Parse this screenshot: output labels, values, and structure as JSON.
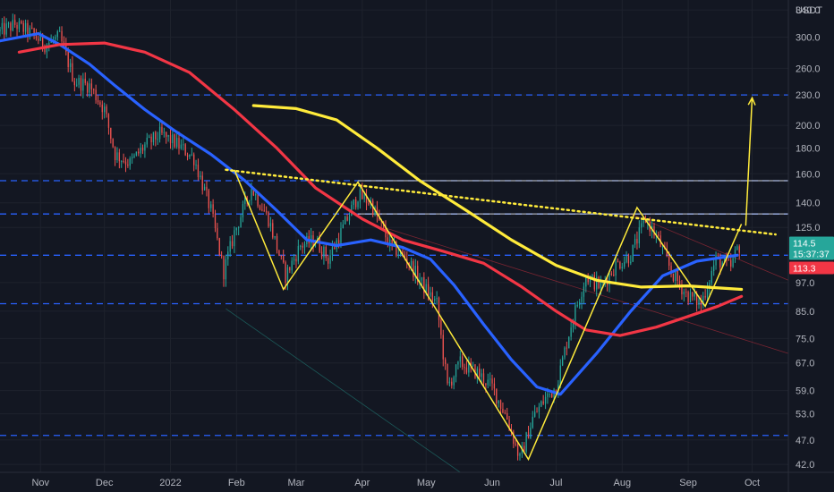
{
  "chart_data": {
    "type": "candlestick",
    "currency": "USDT",
    "y_scale": "log",
    "ylim": [
      40.5,
      356
    ],
    "y_ticks": [
      "340.0",
      "300.0",
      "260.0",
      "230.0",
      "200.0",
      "180.0",
      "160.0",
      "140.0",
      "125.0",
      "97.0",
      "85.0",
      "75.0",
      "67.0",
      "59.0",
      "53.0",
      "47.0",
      "42.0"
    ],
    "x_ticks": [
      {
        "label": "Nov",
        "date": "2021-11-01"
      },
      {
        "label": "Dec",
        "date": "2021-12-01"
      },
      {
        "label": "2022",
        "date": "2022-01-01"
      },
      {
        "label": "Feb",
        "date": "2022-02-01"
      },
      {
        "label": "Mar",
        "date": "2022-03-01"
      },
      {
        "label": "Apr",
        "date": "2022-04-01"
      },
      {
        "label": "May",
        "date": "2022-05-01"
      },
      {
        "label": "Jun",
        "date": "2022-06-01"
      },
      {
        "label": "Jul",
        "date": "2022-07-01"
      },
      {
        "label": "Aug",
        "date": "2022-08-01"
      },
      {
        "label": "Sep",
        "date": "2022-09-01"
      },
      {
        "label": "Oct",
        "date": "2022-10-01"
      }
    ],
    "xlim": [
      "2021-10-13",
      "2022-10-18"
    ],
    "price_anchors": [
      [
        "2021-10-13",
        308
      ],
      [
        "2021-10-20",
        318
      ],
      [
        "2021-10-28",
        305
      ],
      [
        "2021-11-03",
        290
      ],
      [
        "2021-11-10",
        300
      ],
      [
        "2021-11-17",
        245
      ],
      [
        "2021-11-24",
        240
      ],
      [
        "2021-12-01",
        215
      ],
      [
        "2021-12-06",
        175
      ],
      [
        "2021-12-13",
        168
      ],
      [
        "2021-12-20",
        182
      ],
      [
        "2021-12-27",
        192
      ],
      [
        "2022-01-03",
        185
      ],
      [
        "2022-01-12",
        172
      ],
      [
        "2022-01-20",
        135
      ],
      [
        "2022-01-26",
        102
      ],
      [
        "2022-01-31",
        122
      ],
      [
        "2022-02-08",
        150
      ],
      [
        "2022-02-16",
        130
      ],
      [
        "2022-02-24",
        100
      ],
      [
        "2022-03-03",
        115
      ],
      [
        "2022-03-10",
        118
      ],
      [
        "2022-03-16",
        108
      ],
      [
        "2022-03-22",
        122
      ],
      [
        "2022-03-30",
        145
      ],
      [
        "2022-04-05",
        140
      ],
      [
        "2022-04-14",
        115
      ],
      [
        "2022-04-22",
        108
      ],
      [
        "2022-04-30",
        95
      ],
      [
        "2022-05-06",
        88
      ],
      [
        "2022-05-11",
        60
      ],
      [
        "2022-05-17",
        67
      ],
      [
        "2022-05-25",
        64
      ],
      [
        "2022-06-01",
        60
      ],
      [
        "2022-06-08",
        52
      ],
      [
        "2022-06-14",
        43
      ],
      [
        "2022-06-20",
        52
      ],
      [
        "2022-06-26",
        57
      ],
      [
        "2022-07-01",
        60
      ],
      [
        "2022-07-08",
        80
      ],
      [
        "2022-07-15",
        100
      ],
      [
        "2022-07-22",
        95
      ],
      [
        "2022-07-29",
        105
      ],
      [
        "2022-08-05",
        110
      ],
      [
        "2022-08-12",
        130
      ],
      [
        "2022-08-18",
        118
      ],
      [
        "2022-08-24",
        102
      ],
      [
        "2022-08-31",
        92
      ],
      [
        "2022-09-07",
        88
      ],
      [
        "2022-09-14",
        108
      ],
      [
        "2022-09-21",
        104
      ],
      [
        "2022-09-24",
        113.3
      ],
      [
        "2022-09-25",
        114.5
      ]
    ],
    "series": [
      {
        "color": "#2962ff",
        "points": [
          [
            "2021-10-13",
            295
          ],
          [
            "2021-10-31",
            305
          ],
          [
            "2021-11-10",
            290
          ],
          [
            "2021-11-24",
            265
          ],
          [
            "2021-12-06",
            240
          ],
          [
            "2021-12-20",
            215
          ],
          [
            "2022-01-03",
            195
          ],
          [
            "2022-01-20",
            175
          ],
          [
            "2022-02-05",
            155
          ],
          [
            "2022-02-20",
            135
          ],
          [
            "2022-03-06",
            118
          ],
          [
            "2022-03-20",
            115
          ],
          [
            "2022-04-05",
            118
          ],
          [
            "2022-04-20",
            114
          ],
          [
            "2022-05-03",
            108
          ],
          [
            "2022-05-14",
            96
          ],
          [
            "2022-05-28",
            80
          ],
          [
            "2022-06-10",
            68
          ],
          [
            "2022-06-22",
            60
          ],
          [
            "2022-07-03",
            58
          ],
          [
            "2022-07-20",
            70
          ],
          [
            "2022-08-05",
            85
          ],
          [
            "2022-08-20",
            100
          ],
          [
            "2022-09-05",
            107
          ],
          [
            "2022-09-24",
            110
          ]
        ]
      },
      {
        "color": "#f23645",
        "points": [
          [
            "2021-10-22",
            280
          ],
          [
            "2021-11-10",
            290
          ],
          [
            "2021-12-01",
            292
          ],
          [
            "2021-12-20",
            280
          ],
          [
            "2022-01-10",
            255
          ],
          [
            "2022-01-31",
            215
          ],
          [
            "2022-02-20",
            180
          ],
          [
            "2022-03-10",
            150
          ],
          [
            "2022-04-01",
            130
          ],
          [
            "2022-04-20",
            118
          ],
          [
            "2022-05-09",
            112
          ],
          [
            "2022-05-28",
            106
          ],
          [
            "2022-06-15",
            95
          ],
          [
            "2022-07-01",
            85
          ],
          [
            "2022-07-15",
            78
          ],
          [
            "2022-07-31",
            76
          ],
          [
            "2022-08-17",
            79
          ],
          [
            "2022-09-01",
            83
          ],
          [
            "2022-09-15",
            87
          ],
          [
            "2022-09-26",
            91
          ]
        ]
      },
      {
        "color": "#ffeb3b",
        "points": [
          [
            "2022-02-09",
            219
          ],
          [
            "2022-03-01",
            216
          ],
          [
            "2022-03-20",
            205
          ],
          [
            "2022-04-08",
            180
          ],
          [
            "2022-04-28",
            155
          ],
          [
            "2022-05-20",
            135
          ],
          [
            "2022-06-10",
            118
          ],
          [
            "2022-07-01",
            105
          ],
          [
            "2022-07-20",
            98
          ],
          [
            "2022-08-10",
            95
          ],
          [
            "2022-09-01",
            95.5
          ],
          [
            "2022-09-26",
            94
          ]
        ]
      }
    ],
    "trend_lines": [
      {
        "style": "dotted",
        "color": "#ffeb3b",
        "points": [
          [
            "2022-01-27",
            163
          ],
          [
            "2022-10-12",
            121
          ]
        ]
      },
      {
        "style": "solid",
        "color": "#ffeb3b",
        "points": [
          [
            "2022-01-31",
            163
          ],
          [
            "2022-02-23",
            94
          ],
          [
            "2022-03-30",
            154
          ],
          [
            "2022-06-18",
            43
          ],
          [
            "2022-08-08",
            137
          ],
          [
            "2022-09-09",
            87
          ],
          [
            "2022-09-26",
            127
          ]
        ]
      },
      {
        "style": "arrow",
        "color": "#ffeb3b",
        "points": [
          [
            "2022-09-28",
            126
          ],
          [
            "2022-10-01",
            227
          ]
        ]
      }
    ],
    "horizontal_levels": [
      {
        "style": "dashed",
        "value": 230
      },
      {
        "style": "dashed",
        "value": 155
      },
      {
        "style": "dashed",
        "value": 133
      },
      {
        "style": "dashed",
        "value": 110
      },
      {
        "style": "dashed",
        "value": 88
      },
      {
        "style": "dashed",
        "value": 48
      },
      {
        "style": "solid",
        "value": 155
      },
      {
        "style": "solid",
        "value": 133
      }
    ],
    "faint_lines": [
      {
        "color": "#26a69a",
        "points": [
          [
            "2022-01-27",
            86
          ],
          [
            "2022-05-17",
            40.5
          ]
        ]
      },
      {
        "color": "#f23645",
        "points": [
          [
            "2022-04-11",
            125
          ],
          [
            "2022-10-18",
            70
          ]
        ]
      },
      {
        "color": "#f23645",
        "points": [
          [
            "2022-08-05",
            133
          ],
          [
            "2022-10-18",
            98
          ]
        ]
      }
    ],
    "price_labels": [
      {
        "value": 114.5,
        "text": "114.5",
        "subtext": "15:37:37",
        "color": "#26a69a"
      },
      {
        "value": 113.3,
        "text": "113.3",
        "color": "#f23645"
      }
    ]
  }
}
